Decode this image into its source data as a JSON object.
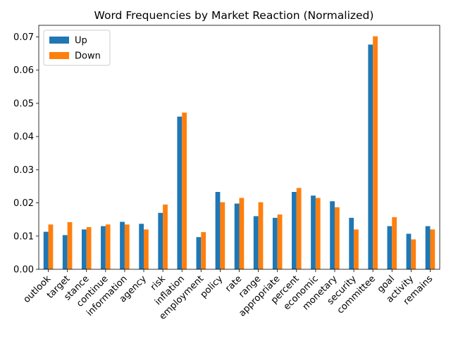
{
  "chart_data": {
    "type": "bar",
    "title": "Word Frequencies by Market Reaction (Normalized)",
    "xlabel": "",
    "ylabel": "",
    "categories": [
      "outlook",
      "target",
      "stance",
      "continue",
      "information",
      "agency",
      "risk",
      "inflation",
      "employment",
      "policy",
      "rate",
      "range",
      "appropriate",
      "percent",
      "economic",
      "monetary",
      "security",
      "committee",
      "goal",
      "activity",
      "remains"
    ],
    "series": [
      {
        "name": "Up",
        "color": "#1f77b4",
        "values": [
          0.0113,
          0.0103,
          0.012,
          0.013,
          0.0143,
          0.0137,
          0.017,
          0.046,
          0.0097,
          0.0233,
          0.0198,
          0.016,
          0.0155,
          0.0233,
          0.0222,
          0.0205,
          0.0155,
          0.0677,
          0.013,
          0.0107,
          0.013
        ]
      },
      {
        "name": "Down",
        "color": "#ff7f0e",
        "values": [
          0.0135,
          0.0142,
          0.0127,
          0.0135,
          0.0135,
          0.012,
          0.0195,
          0.0472,
          0.0112,
          0.0202,
          0.0215,
          0.0202,
          0.0165,
          0.0245,
          0.0215,
          0.0187,
          0.012,
          0.0702,
          0.0157,
          0.009,
          0.012
        ]
      }
    ],
    "ylim": [
      0,
      0.0735
    ],
    "yticks": [
      "0.00",
      "0.01",
      "0.02",
      "0.03",
      "0.04",
      "0.05",
      "0.06",
      "0.07"
    ],
    "ytick_values": [
      0,
      0.01,
      0.02,
      0.03,
      0.04,
      0.05,
      0.06,
      0.07
    ],
    "xtick_rotation": 45,
    "legend_position": "top-left",
    "grid": false
  }
}
